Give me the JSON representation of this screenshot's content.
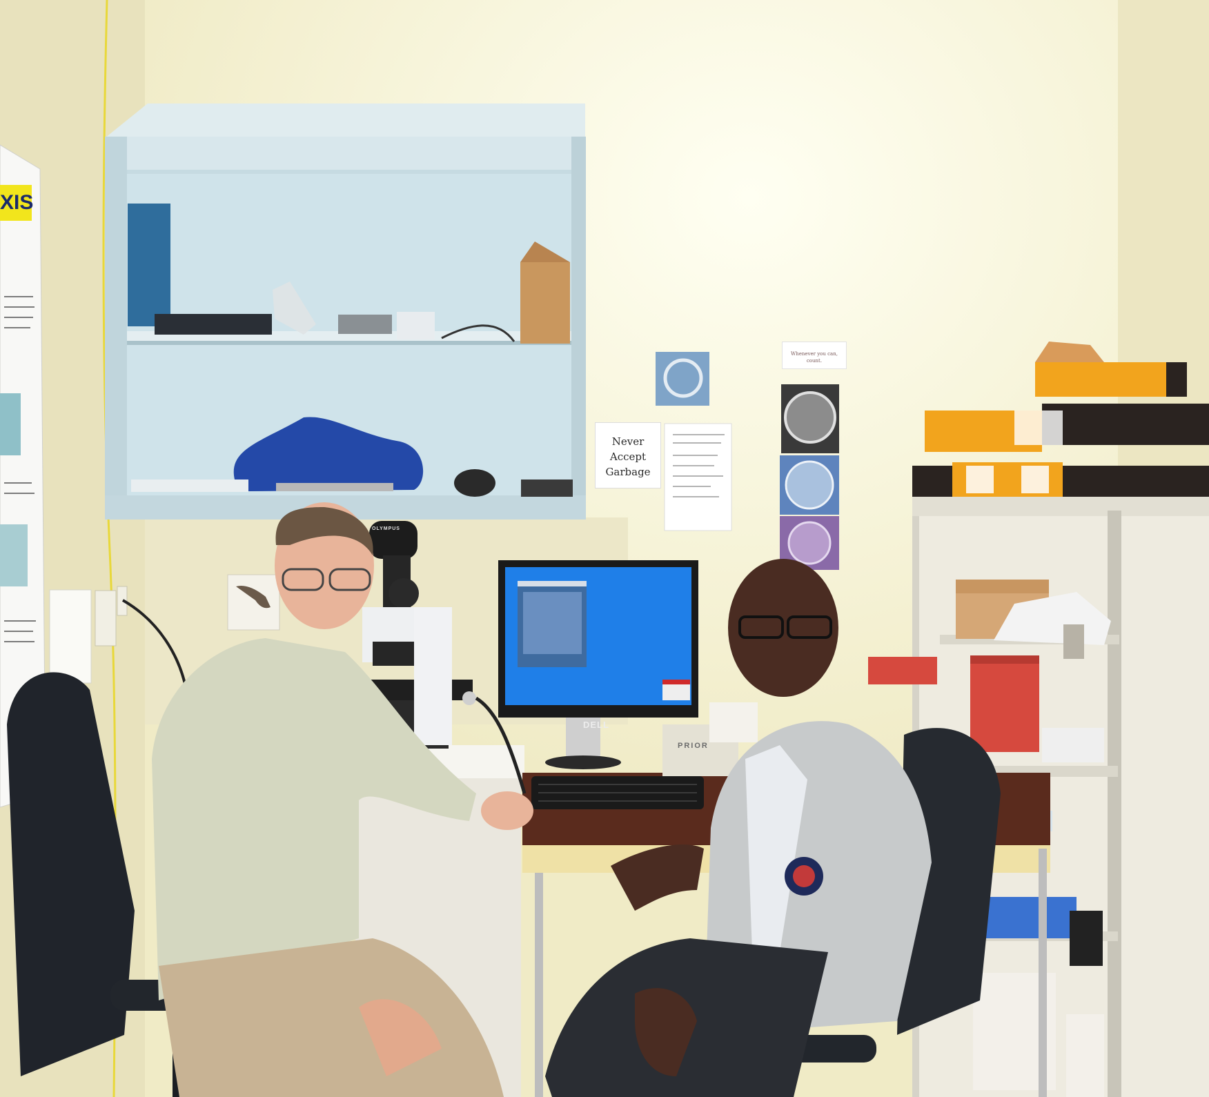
{
  "photo": {
    "description_type": "photograph of a laboratory office",
    "signs": {
      "never_accept_garbage": [
        "Never",
        "Accept",
        "Garbage"
      ],
      "quote_card": "Whenever you can, count."
    },
    "poster_heading": "XIS",
    "equipment_labels": {
      "monitor_brand": "DELL",
      "box_brand": "PRIOR",
      "microscope_brand": "OLYMPUS"
    }
  },
  "colors": {
    "wall": "#f3efcf",
    "cabinet": "#cfe3ea",
    "monitor_screen": "#1f7fe8",
    "jacket": "#2449a8",
    "box_orange": "#f2a41d"
  }
}
